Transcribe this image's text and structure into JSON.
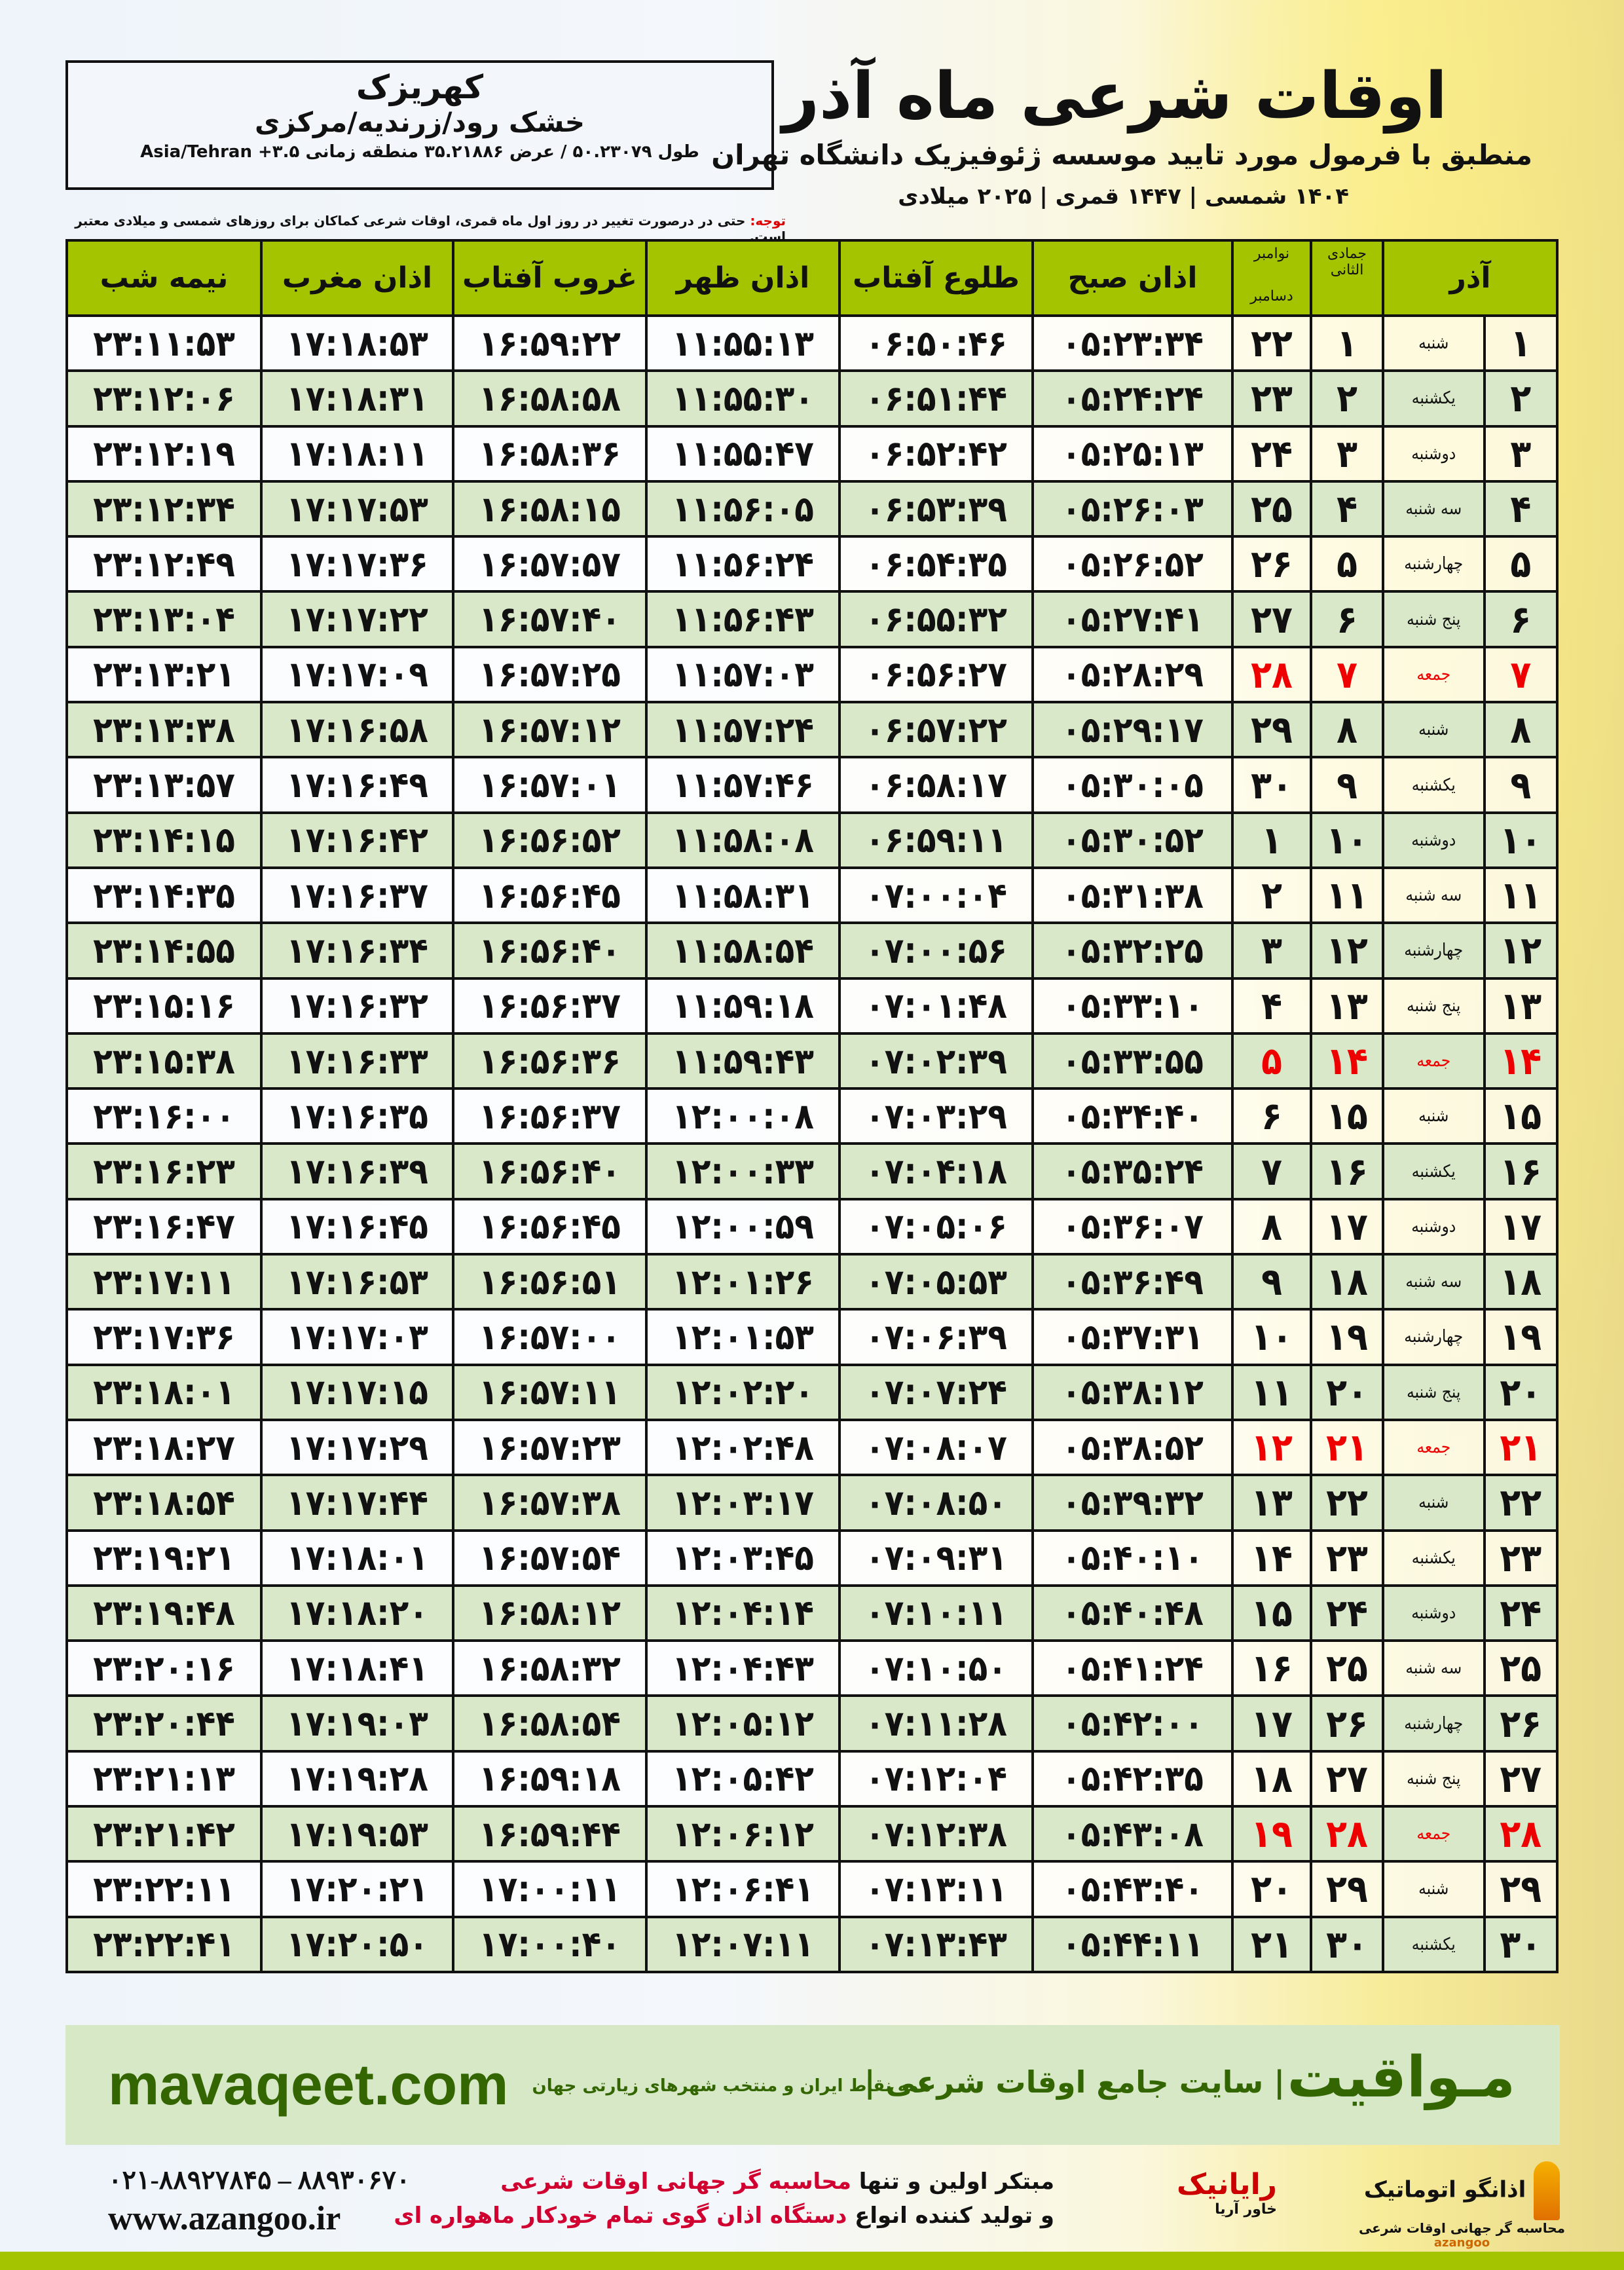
{
  "header": {
    "city": "کهریزک",
    "region": "خشک رود/زرندیه/مرکزی",
    "coords": "طول ۵۰.۲۳۰۷۹ / عرض ۳۵.۲۱۸۸۶ منطقه زمانی ۳.۵+ Asia/Tehran",
    "title": "اوقات شرعی ماه آذر",
    "subtitle": "منطبق با فرمول مورد تایید موسسه ژئوفیزیک دانشگاه تهران",
    "years": "۱۴۰۴ شمسی | ۱۴۴۷ قمری | ۲۰۲۵ میلادی",
    "note_label": "توجه:",
    "note": " حتی در درصورت تغییر در روز اول ماه قمری، اوقات شرعی کماکان برای روزهای شمسی و میلادی معتبر است."
  },
  "table": {
    "headers": {
      "midnight": "نیمه شب",
      "maghrib": "اذان مغرب",
      "sunset": "غروب آفتاب",
      "dhuhr": "اذان ظهر",
      "sunrise": "طلوع آفتاب",
      "fajr": "اذان صبح",
      "greg_top": "نوامبر",
      "greg_bottom": "دسامبر",
      "hijri": "جمادی الثانی",
      "solar": "آذر"
    },
    "rows": [
      [
        "۱",
        "شنبه",
        "۱",
        "۲۲",
        "۰۵:۲۳:۳۴",
        "۰۶:۵۰:۴۶",
        "۱۱:۵۵:۱۳",
        "۱۶:۵۹:۲۲",
        "۱۷:۱۸:۵۳",
        "۲۳:۱۱:۵۳"
      ],
      [
        "۲",
        "یکشنبه",
        "۲",
        "۲۳",
        "۰۵:۲۴:۲۴",
        "۰۶:۵۱:۴۴",
        "۱۱:۵۵:۳۰",
        "۱۶:۵۸:۵۸",
        "۱۷:۱۸:۳۱",
        "۲۳:۱۲:۰۶"
      ],
      [
        "۳",
        "دوشنبه",
        "۳",
        "۲۴",
        "۰۵:۲۵:۱۳",
        "۰۶:۵۲:۴۲",
        "۱۱:۵۵:۴۷",
        "۱۶:۵۸:۳۶",
        "۱۷:۱۸:۱۱",
        "۲۳:۱۲:۱۹"
      ],
      [
        "۴",
        "سه شنبه",
        "۴",
        "۲۵",
        "۰۵:۲۶:۰۳",
        "۰۶:۵۳:۳۹",
        "۱۱:۵۶:۰۵",
        "۱۶:۵۸:۱۵",
        "۱۷:۱۷:۵۳",
        "۲۳:۱۲:۳۴"
      ],
      [
        "۵",
        "چهارشنبه",
        "۵",
        "۲۶",
        "۰۵:۲۶:۵۲",
        "۰۶:۵۴:۳۵",
        "۱۱:۵۶:۲۴",
        "۱۶:۵۷:۵۷",
        "۱۷:۱۷:۳۶",
        "۲۳:۱۲:۴۹"
      ],
      [
        "۶",
        "پنج شنبه",
        "۶",
        "۲۷",
        "۰۵:۲۷:۴۱",
        "۰۶:۵۵:۳۲",
        "۱۱:۵۶:۴۳",
        "۱۶:۵۷:۴۰",
        "۱۷:۱۷:۲۲",
        "۲۳:۱۳:۰۴"
      ],
      [
        "۷",
        "جمعه",
        "۷",
        "۲۸",
        "۰۵:۲۸:۲۹",
        "۰۶:۵۶:۲۷",
        "۱۱:۵۷:۰۳",
        "۱۶:۵۷:۲۵",
        "۱۷:۱۷:۰۹",
        "۲۳:۱۳:۲۱"
      ],
      [
        "۸",
        "شنبه",
        "۸",
        "۲۹",
        "۰۵:۲۹:۱۷",
        "۰۶:۵۷:۲۲",
        "۱۱:۵۷:۲۴",
        "۱۶:۵۷:۱۲",
        "۱۷:۱۶:۵۸",
        "۲۳:۱۳:۳۸"
      ],
      [
        "۹",
        "یکشنبه",
        "۹",
        "۳۰",
        "۰۵:۳۰:۰۵",
        "۰۶:۵۸:۱۷",
        "۱۱:۵۷:۴۶",
        "۱۶:۵۷:۰۱",
        "۱۷:۱۶:۴۹",
        "۲۳:۱۳:۵۷"
      ],
      [
        "۱۰",
        "دوشنبه",
        "۱۰",
        "۱",
        "۰۵:۳۰:۵۲",
        "۰۶:۵۹:۱۱",
        "۱۱:۵۸:۰۸",
        "۱۶:۵۶:۵۲",
        "۱۷:۱۶:۴۲",
        "۲۳:۱۴:۱۵"
      ],
      [
        "۱۱",
        "سه شنبه",
        "۱۱",
        "۲",
        "۰۵:۳۱:۳۸",
        "۰۷:۰۰:۰۴",
        "۱۱:۵۸:۳۱",
        "۱۶:۵۶:۴۵",
        "۱۷:۱۶:۳۷",
        "۲۳:۱۴:۳۵"
      ],
      [
        "۱۲",
        "چهارشنبه",
        "۱۲",
        "۳",
        "۰۵:۳۲:۲۵",
        "۰۷:۰۰:۵۶",
        "۱۱:۵۸:۵۴",
        "۱۶:۵۶:۴۰",
        "۱۷:۱۶:۳۴",
        "۲۳:۱۴:۵۵"
      ],
      [
        "۱۳",
        "پنج شنبه",
        "۱۳",
        "۴",
        "۰۵:۳۳:۱۰",
        "۰۷:۰۱:۴۸",
        "۱۱:۵۹:۱۸",
        "۱۶:۵۶:۳۷",
        "۱۷:۱۶:۳۲",
        "۲۳:۱۵:۱۶"
      ],
      [
        "۱۴",
        "جمعه",
        "۱۴",
        "۵",
        "۰۵:۳۳:۵۵",
        "۰۷:۰۲:۳۹",
        "۱۱:۵۹:۴۳",
        "۱۶:۵۶:۳۶",
        "۱۷:۱۶:۳۳",
        "۲۳:۱۵:۳۸"
      ],
      [
        "۱۵",
        "شنبه",
        "۱۵",
        "۶",
        "۰۵:۳۴:۴۰",
        "۰۷:۰۳:۲۹",
        "۱۲:۰۰:۰۸",
        "۱۶:۵۶:۳۷",
        "۱۷:۱۶:۳۵",
        "۲۳:۱۶:۰۰"
      ],
      [
        "۱۶",
        "یکشنبه",
        "۱۶",
        "۷",
        "۰۵:۳۵:۲۴",
        "۰۷:۰۴:۱۸",
        "۱۲:۰۰:۳۳",
        "۱۶:۵۶:۴۰",
        "۱۷:۱۶:۳۹",
        "۲۳:۱۶:۲۳"
      ],
      [
        "۱۷",
        "دوشنبه",
        "۱۷",
        "۸",
        "۰۵:۳۶:۰۷",
        "۰۷:۰۵:۰۶",
        "۱۲:۰۰:۵۹",
        "۱۶:۵۶:۴۵",
        "۱۷:۱۶:۴۵",
        "۲۳:۱۶:۴۷"
      ],
      [
        "۱۸",
        "سه شنبه",
        "۱۸",
        "۹",
        "۰۵:۳۶:۴۹",
        "۰۷:۰۵:۵۳",
        "۱۲:۰۱:۲۶",
        "۱۶:۵۶:۵۱",
        "۱۷:۱۶:۵۳",
        "۲۳:۱۷:۱۱"
      ],
      [
        "۱۹",
        "چهارشنبه",
        "۱۹",
        "۱۰",
        "۰۵:۳۷:۳۱",
        "۰۷:۰۶:۳۹",
        "۱۲:۰۱:۵۳",
        "۱۶:۵۷:۰۰",
        "۱۷:۱۷:۰۳",
        "۲۳:۱۷:۳۶"
      ],
      [
        "۲۰",
        "پنج شنبه",
        "۲۰",
        "۱۱",
        "۰۵:۳۸:۱۲",
        "۰۷:۰۷:۲۴",
        "۱۲:۰۲:۲۰",
        "۱۶:۵۷:۱۱",
        "۱۷:۱۷:۱۵",
        "۲۳:۱۸:۰۱"
      ],
      [
        "۲۱",
        "جمعه",
        "۲۱",
        "۱۲",
        "۰۵:۳۸:۵۲",
        "۰۷:۰۸:۰۷",
        "۱۲:۰۲:۴۸",
        "۱۶:۵۷:۲۳",
        "۱۷:۱۷:۲۹",
        "۲۳:۱۸:۲۷"
      ],
      [
        "۲۲",
        "شنبه",
        "۲۲",
        "۱۳",
        "۰۵:۳۹:۳۲",
        "۰۷:۰۸:۵۰",
        "۱۲:۰۳:۱۷",
        "۱۶:۵۷:۳۸",
        "۱۷:۱۷:۴۴",
        "۲۳:۱۸:۵۴"
      ],
      [
        "۲۳",
        "یکشنبه",
        "۲۳",
        "۱۴",
        "۰۵:۴۰:۱۰",
        "۰۷:۰۹:۳۱",
        "۱۲:۰۳:۴۵",
        "۱۶:۵۷:۵۴",
        "۱۷:۱۸:۰۱",
        "۲۳:۱۹:۲۱"
      ],
      [
        "۲۴",
        "دوشنبه",
        "۲۴",
        "۱۵",
        "۰۵:۴۰:۴۸",
        "۰۷:۱۰:۱۱",
        "۱۲:۰۴:۱۴",
        "۱۶:۵۸:۱۲",
        "۱۷:۱۸:۲۰",
        "۲۳:۱۹:۴۸"
      ],
      [
        "۲۵",
        "سه شنبه",
        "۲۵",
        "۱۶",
        "۰۵:۴۱:۲۴",
        "۰۷:۱۰:۵۰",
        "۱۲:۰۴:۴۳",
        "۱۶:۵۸:۳۲",
        "۱۷:۱۸:۴۱",
        "۲۳:۲۰:۱۶"
      ],
      [
        "۲۶",
        "چهارشنبه",
        "۲۶",
        "۱۷",
        "۰۵:۴۲:۰۰",
        "۰۷:۱۱:۲۸",
        "۱۲:۰۵:۱۲",
        "۱۶:۵۸:۵۴",
        "۱۷:۱۹:۰۳",
        "۲۳:۲۰:۴۴"
      ],
      [
        "۲۷",
        "پنج شنبه",
        "۲۷",
        "۱۸",
        "۰۵:۴۲:۳۵",
        "۰۷:۱۲:۰۴",
        "۱۲:۰۵:۴۲",
        "۱۶:۵۹:۱۸",
        "۱۷:۱۹:۲۸",
        "۲۳:۲۱:۱۳"
      ],
      [
        "۲۸",
        "جمعه",
        "۲۸",
        "۱۹",
        "۰۵:۴۳:۰۸",
        "۰۷:۱۲:۳۸",
        "۱۲:۰۶:۱۲",
        "۱۶:۵۹:۴۴",
        "۱۷:۱۹:۵۳",
        "۲۳:۲۱:۴۲"
      ],
      [
        "۲۹",
        "شنبه",
        "۲۹",
        "۲۰",
        "۰۵:۴۳:۴۰",
        "۰۷:۱۳:۱۱",
        "۱۲:۰۶:۴۱",
        "۱۷:۰۰:۱۱",
        "۱۷:۲۰:۲۱",
        "۲۳:۲۲:۱۱"
      ],
      [
        "۳۰",
        "یکشنبه",
        "۳۰",
        "۲۱",
        "۰۵:۴۴:۱۱",
        "۰۷:۱۳:۴۳",
        "۱۲:۰۷:۱۱",
        "۱۷:۰۰:۴۰",
        "۱۷:۲۰:۵۰",
        "۲۳:۲۲:۴۱"
      ]
    ],
    "friday_label": "جمعه"
  },
  "footer": {
    "site": "mavaqeet.com",
    "brand": "مـواقیت",
    "tagline": "| سایت جامع اوقات شرعی |",
    "tagline2": "همه نقاط ایران و منتخب شهرهای زیارتی جهان",
    "phones": "۰۲۱-۸۸۹۲۷۸۴۵ – ۸۸۹۳۰۶۷۰",
    "web": "www.azangoo.ir",
    "promo1a": "مبتکر اولین و تنها ",
    "promo1b": "محاسبه گر جهانی اوقات شرعی",
    "promo2a": "و تولید کننده انواع ",
    "promo2b": "دستگاه اذان گوی تمام خودکار ماهواره ای",
    "logo_rayanik": "رایانیک",
    "logo_rayanik_sub": "خاور آریا",
    "logo_azangoo": "اذانگو اتوماتیک",
    "logo_azangoo_sub": "محاسبه گر جهانی اوقات شرعی",
    "logo_azangoo_en": "azangoo"
  },
  "colors": {
    "header_green": "#a4c400",
    "alt_row": "#d8e8c8",
    "friday_red": "#e00000",
    "brand_green": "#336600"
  }
}
